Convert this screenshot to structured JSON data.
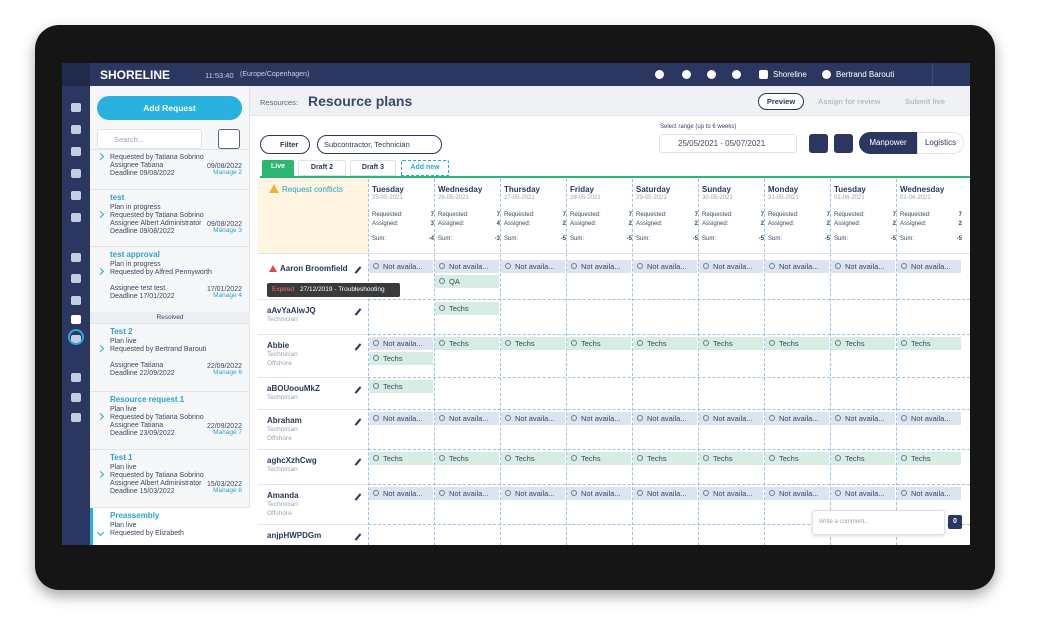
{
  "header": {
    "logo": "SHORELINE",
    "time": "11:53:40",
    "timezone": "(Europe/Copenhagen)",
    "settings": "Shoreline",
    "user": "Bertrand Barouti"
  },
  "left_panel": {
    "add_request": "Add Request",
    "search": "Search...",
    "resolved": "Resolved",
    "requests": [
      {
        "requested_by": "Requested by Tatiana Sobrino",
        "assignee": "Assignee Tatiana",
        "deadline": "Deadline 09/08/2022",
        "date": "09/08/2022",
        "manage": "Manage 2"
      },
      {
        "title": "test",
        "status": "Plan in progress",
        "requested_by": "Requested by Tatiana Sobrino",
        "assignee": "Assignee Albert Administrator",
        "deadline": "Deadline 09/08/2022",
        "date": "09/08/2022",
        "manage": "Manage 3"
      },
      {
        "title": "test approval",
        "status": "Plan in progress",
        "requested_by": "Requested by Alfred Pennyworth",
        "assignee": "Assignee test test",
        "deadline": "Deadline 17/01/2022",
        "date": "17/01/2022",
        "manage": "Manage 4"
      },
      {
        "title": "Test 2",
        "status": "Plan live",
        "requested_by": "Requested by Bertrand Barouti",
        "assignee": "Assignee Tatiana",
        "deadline": "Deadline 22/09/2022",
        "date": "22/09/2022",
        "manage": "Manage 6"
      },
      {
        "title": "Resource request 1",
        "status": "Plan live",
        "requested_by": "Requested by Tatiana Sobrino",
        "assignee": "Assignee Tatiana",
        "deadline": "Deadline 23/09/2022",
        "date": "22/09/2022",
        "manage": "Manage 7"
      },
      {
        "title": "Test 1",
        "status": "Plan live",
        "requested_by": "Requested by Tatiana Sobrino",
        "assignee": "Assignee Albert Administrator",
        "deadline": "Deadline 15/03/2022",
        "date": "15/03/2022",
        "manage": "Manage 8"
      },
      {
        "title": "Preassembly",
        "status": "Plan live",
        "requested_by": "Requested by Elizabeth"
      }
    ]
  },
  "main": {
    "breadcrumb": "Resources:",
    "title": "Resource plans",
    "preview": "Preview",
    "assign": "Assign for review",
    "submit": "Submit live",
    "filter": "Filter",
    "filter_chip": "Subcontractor, Technician",
    "range_label": "Select range (up to 6 weeks)",
    "range": "25/05/2021  -  05/07/2021",
    "manpower": "Manpower",
    "logistics": "Logistics",
    "tabs": [
      "Live",
      "Draft 2",
      "Draft 3",
      "Add new"
    ],
    "conflicts": "Request conflicts",
    "labels": {
      "requested": "Requested:",
      "assigned": "Assigned:",
      "sum": "Sum:"
    },
    "days": [
      {
        "name": "Tuesday",
        "date": "25-05-2021",
        "requested": 7,
        "assigned": 3,
        "sum": -4
      },
      {
        "name": "Wednesday",
        "date": "26-05-2021",
        "requested": 7,
        "assigned": 4,
        "sum": -3
      },
      {
        "name": "Thursday",
        "date": "27-05-2021",
        "requested": 7,
        "assigned": 2,
        "sum": -5
      },
      {
        "name": "Friday",
        "date": "28-05-2021",
        "requested": 7,
        "assigned": 2,
        "sum": -5
      },
      {
        "name": "Saturday",
        "date": "29-05-2021",
        "requested": 7,
        "assigned": 2,
        "sum": -5
      },
      {
        "name": "Sunday",
        "date": "30-05-2021",
        "requested": 7,
        "assigned": 2,
        "sum": -5
      },
      {
        "name": "Monday",
        "date": "31-05-2021",
        "requested": 7,
        "assigned": 2,
        "sum": -5
      },
      {
        "name": "Tuesday",
        "date": "01-06-2021",
        "requested": 7,
        "assigned": 2,
        "sum": -5
      },
      {
        "name": "Wednesday",
        "date": "02-06-2021",
        "requested": 7,
        "assigned": 2,
        "sum": -5
      }
    ],
    "tooltip": {
      "status": "Expired",
      "text": "27/12/2019 - Troubleshooting"
    },
    "rows": [
      {
        "name": "Aaron Broomfield",
        "slots": [
          [
            {
              "text": "Not availa...",
              "color": "#dce4f0"
            },
            {
              "text": "Not availa...",
              "color": "#dce4f0"
            },
            {
              "text": "Not availa...",
              "color": "#dce4f0"
            },
            {
              "text": "Not availa...",
              "color": "#dce4f0"
            },
            {
              "text": "Not availa...",
              "color": "#dce4f0"
            },
            {
              "text": "Not availa...",
              "color": "#dce4f0"
            },
            {
              "text": "Not availa...",
              "color": "#dce4f0"
            },
            {
              "text": "Not availa...",
              "color": "#dce4f0"
            },
            {
              "text": "Not availa...",
              "color": "#dce4f0"
            }
          ],
          [
            null,
            {
              "text": "QA",
              "color": "#d6ede3"
            },
            null,
            null,
            null,
            null,
            null,
            null,
            null
          ]
        ]
      },
      {
        "name": "aAvYaAiwJQ",
        "role": "Technician",
        "slots": [
          [
            null,
            {
              "text": "Techs",
              "color": "#d6ede3"
            },
            null,
            null,
            null,
            null,
            null,
            null,
            null
          ]
        ]
      },
      {
        "name": "Abbie",
        "role": "Technician",
        "location": "Offshore",
        "slots": [
          [
            {
              "text": "Not availa...",
              "color": "#dce4f0"
            },
            {
              "text": "Techs",
              "color": "#d6ede3"
            },
            {
              "text": "Techs",
              "color": "#d6ede3"
            },
            {
              "text": "Techs",
              "color": "#d6ede3"
            },
            {
              "text": "Techs",
              "color": "#d6ede3"
            },
            {
              "text": "Techs",
              "color": "#d6ede3"
            },
            {
              "text": "Techs",
              "color": "#d6ede3"
            },
            {
              "text": "Techs",
              "color": "#d6ede3"
            },
            {
              "text": "Techs",
              "color": "#d6ede3"
            }
          ],
          [
            {
              "text": "Techs",
              "color": "#d6ede3"
            },
            null,
            null,
            null,
            null,
            null,
            null,
            null,
            null
          ]
        ]
      },
      {
        "name": "aBOUoouMkZ",
        "role": "Technician",
        "slots": [
          [
            {
              "text": "Techs",
              "color": "#d6ede3"
            },
            null,
            null,
            null,
            null,
            null,
            null,
            null,
            null
          ]
        ]
      },
      {
        "name": "Abraham",
        "role": "Technician",
        "location": "Offshore",
        "slots": [
          [
            {
              "text": "Not availa...",
              "color": "#dce4f0"
            },
            {
              "text": "Not availa...",
              "color": "#dce4f0"
            },
            {
              "text": "Not availa...",
              "color": "#dce4f0"
            },
            {
              "text": "Not availa...",
              "color": "#dce4f0"
            },
            {
              "text": "Not availa...",
              "color": "#dce4f0"
            },
            {
              "text": "Not availa...",
              "color": "#dce4f0"
            },
            {
              "text": "Not availa...",
              "color": "#dce4f0"
            },
            {
              "text": "Not availa...",
              "color": "#dce4f0"
            },
            {
              "text": "Not availa...",
              "color": "#dce4f0"
            }
          ]
        ]
      },
      {
        "name": "aghcXzhCwg",
        "role": "Technician",
        "slots": [
          [
            {
              "text": "Techs",
              "color": "#d6ede3"
            },
            {
              "text": "Techs",
              "color": "#d6ede3"
            },
            {
              "text": "Techs",
              "color": "#d6ede3"
            },
            {
              "text": "Techs",
              "color": "#d6ede3"
            },
            {
              "text": "Techs",
              "color": "#d6ede3"
            },
            {
              "text": "Techs",
              "color": "#d6ede3"
            },
            {
              "text": "Techs",
              "color": "#d6ede3"
            },
            {
              "text": "Techs",
              "color": "#d6ede3"
            },
            {
              "text": "Techs",
              "color": "#d6ede3"
            }
          ]
        ]
      },
      {
        "name": "Amanda",
        "role": "Technician",
        "location": "Offshore",
        "slots": [
          [
            {
              "text": "Not availa...",
              "color": "#dce4f0"
            },
            {
              "text": "Not availa...",
              "color": "#dce4f0"
            },
            {
              "text": "Not availa...",
              "color": "#dce4f0"
            },
            {
              "text": "Not availa...",
              "color": "#dce4f0"
            },
            {
              "text": "Not availa...",
              "color": "#dce4f0"
            },
            {
              "text": "Not availa...",
              "color": "#dce4f0"
            },
            {
              "text": "Not availa...",
              "color": "#dce4f0"
            },
            {
              "text": "Not availa...",
              "color": "#dce4f0"
            },
            {
              "text": "Not availa...",
              "color": "#dce4f0"
            }
          ]
        ]
      },
      {
        "name": "anjpHWPDGm",
        "slots": []
      }
    ],
    "comment": "Write a comment...",
    "comment_count": "0"
  }
}
